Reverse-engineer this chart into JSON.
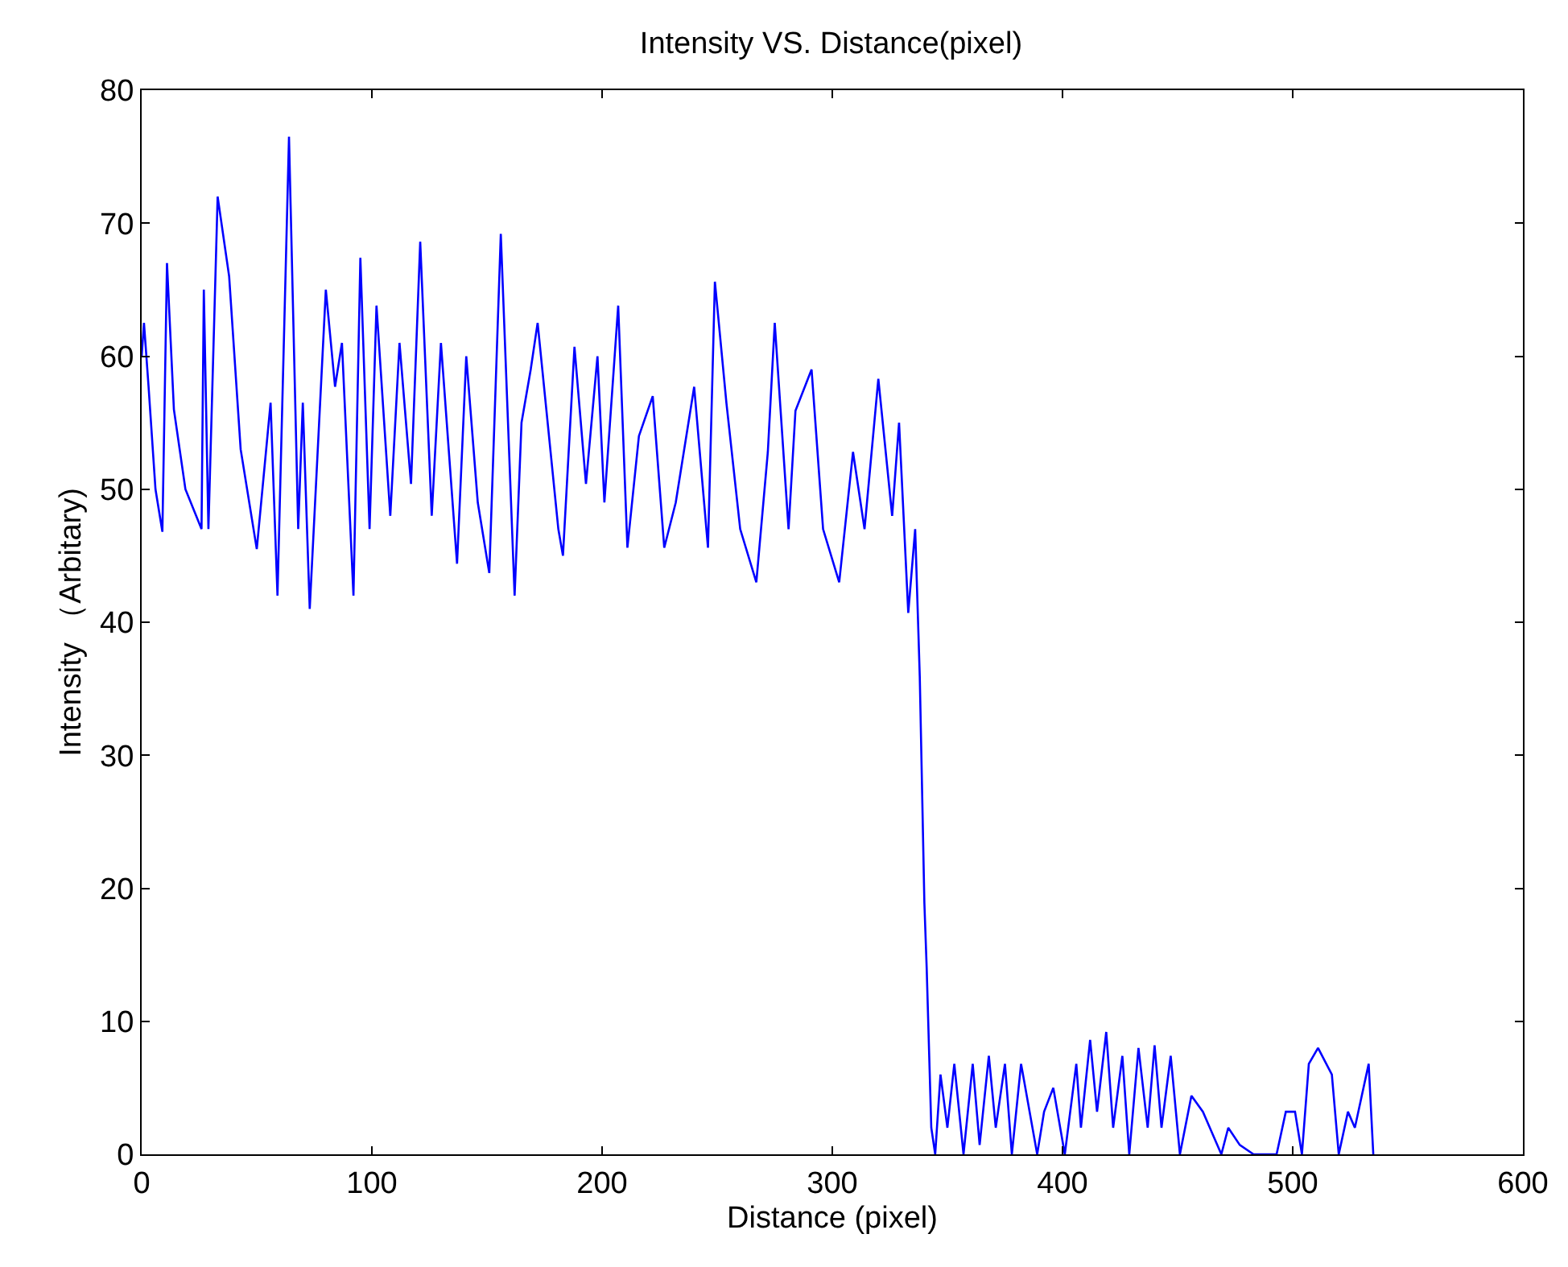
{
  "chart_data": {
    "type": "line",
    "title": "Intensity VS. Distance(pixel)",
    "xlabel": "Distance (pixel)",
    "ylabel": "Intensity （Arbitary)",
    "x": [
      0,
      1,
      3,
      6,
      9,
      11,
      14,
      19,
      26,
      27,
      29,
      33,
      38,
      43,
      50,
      56,
      59,
      64,
      68,
      70,
      73,
      80,
      84,
      87,
      92,
      95,
      99,
      102,
      108,
      112,
      117,
      121,
      126,
      130,
      137,
      141,
      146,
      151,
      156,
      162,
      165,
      169,
      172,
      181,
      183,
      188,
      193,
      198,
      201,
      207,
      211,
      216,
      222,
      227,
      232,
      240,
      246,
      249,
      254,
      260,
      267,
      272,
      275,
      281,
      284,
      291,
      296,
      303,
      309,
      314,
      320,
      326,
      329,
      333,
      336,
      338,
      340,
      341,
      343,
      344.7,
      347,
      350,
      353,
      357,
      361,
      364,
      368,
      371,
      375,
      378,
      382,
      389,
      392,
      396,
      401,
      406,
      408,
      412,
      415,
      419,
      422,
      426,
      429,
      433,
      437,
      440,
      443,
      447,
      451,
      456,
      461,
      464,
      469,
      472,
      477,
      483,
      493,
      497,
      501,
      504,
      507,
      511,
      517,
      520,
      524,
      527,
      530,
      533,
      535
    ],
    "series": [
      {
        "color": "#0000ff",
        "values": [
          60,
          62.5,
          57.7,
          50,
          46.8,
          67,
          56,
          50,
          47,
          65,
          47,
          72,
          66,
          53,
          45.5,
          56.5,
          42,
          76.5,
          47,
          56.5,
          41,
          65,
          57.7,
          61,
          42,
          67.4,
          47,
          63.8,
          48,
          61,
          50.4,
          68.6,
          48,
          61,
          44.4,
          60,
          49,
          43.7,
          69.2,
          42,
          55,
          59,
          62.5,
          47,
          45,
          60.7,
          50.4,
          60,
          49,
          63.8,
          45.6,
          54,
          57,
          45.6,
          49,
          57.7,
          45.6,
          65.6,
          56.5,
          47,
          43,
          52.8,
          62.5,
          47,
          55.9,
          59,
          47,
          43,
          52.8,
          47,
          58.3,
          48,
          55,
          40.7,
          47,
          35.9,
          18.9,
          14,
          2,
          0,
          6,
          2,
          6.8,
          0,
          6.8,
          0.7,
          7.4,
          2,
          6.8,
          0,
          6.8,
          0,
          3.2,
          5,
          0,
          6.8,
          2,
          8.6,
          3.2,
          9.2,
          2,
          7.4,
          0,
          8,
          2,
          8.2,
          2,
          7.4,
          0,
          4.4,
          3.2,
          2,
          0,
          2,
          0.7,
          0,
          0,
          3.2,
          3.2,
          0,
          6.8,
          8,
          6,
          0,
          3.2,
          2,
          4.4,
          6.8,
          0
        ]
      }
    ],
    "xlim": [
      0,
      600
    ],
    "xticks": [
      0,
      100,
      200,
      300,
      400,
      500,
      600
    ],
    "ylim": [
      0,
      80
    ],
    "yticks": [
      0,
      10,
      20,
      30,
      40,
      50,
      60,
      70,
      80
    ],
    "marker": "none",
    "line_style": "solid"
  }
}
